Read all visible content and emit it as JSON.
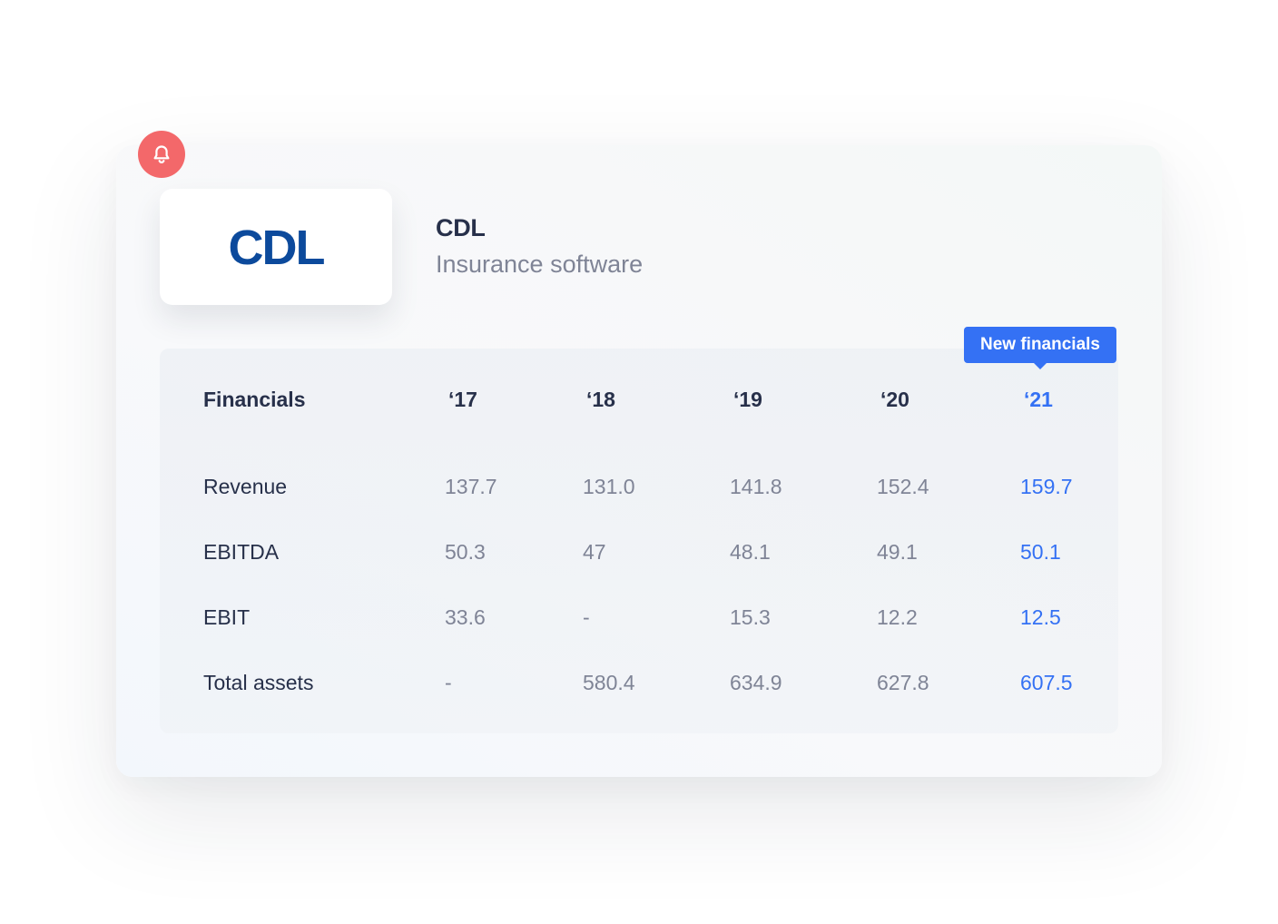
{
  "company": {
    "logo_text": "CDL",
    "name": "CDL",
    "sector": "Insurance software"
  },
  "badge": {
    "label": "New financials"
  },
  "colors": {
    "accent": "#3471f4",
    "bell": "#f3686a",
    "logo": "#0c4a9c",
    "text_dark": "#27304a",
    "text_muted": "#7f8496"
  },
  "icons": {
    "notification": "bell-icon"
  },
  "table": {
    "header_label": "Financials",
    "years": [
      "‘17",
      "‘18",
      "‘19",
      "‘20",
      "‘21"
    ],
    "rows": [
      {
        "label": "Revenue",
        "values": [
          "137.7",
          "131.0",
          "141.8",
          "152.4",
          "159.7"
        ]
      },
      {
        "label": "EBITDA",
        "values": [
          "50.3",
          "47",
          "48.1",
          "49.1",
          "50.1"
        ]
      },
      {
        "label": "EBIT",
        "values": [
          "33.6",
          "-",
          "15.3",
          "12.2",
          "12.5"
        ]
      },
      {
        "label": "Total assets",
        "values": [
          "-",
          "580.4",
          "634.9",
          "627.8",
          "607.5"
        ]
      }
    ]
  }
}
